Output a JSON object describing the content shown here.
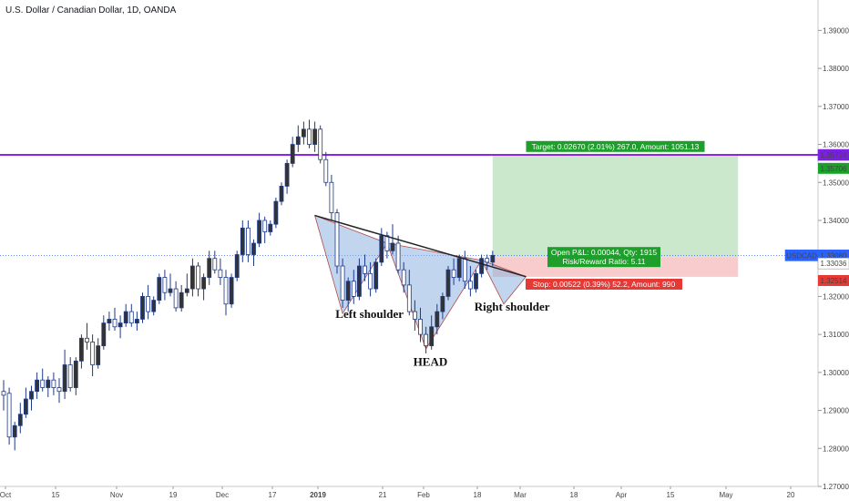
{
  "chart_data": {
    "type": "candlestick",
    "title": "U.S. Dollar / Canadian Dollar, 1D, OANDA",
    "symbol": "USDCAD",
    "ylim": [
      1.27,
      1.398
    ],
    "y_ticks": [
      "1.39000",
      "1.38000",
      "1.37000",
      "1.36000",
      "1.35000",
      "1.34000",
      "1.32000",
      "1.31000",
      "1.30000",
      "1.29000",
      "1.28000",
      "1.27000"
    ],
    "x_ticks": [
      "Oct",
      "15",
      "Nov",
      "19",
      "Dec",
      "17",
      "2019",
      "21",
      "Feb",
      "18",
      "Mar",
      "18",
      "Apr",
      "15",
      "May",
      "20"
    ],
    "price_badges": [
      {
        "label": "1.35724",
        "value": 1.35724,
        "color": "#7b1fe0"
      },
      {
        "label": "1.35706",
        "value": 1.35706,
        "color": "#18a328"
      },
      {
        "label": "USDCAD",
        "value": 1.3308,
        "color": "#2962ff"
      },
      {
        "label": "1.33080",
        "value": 1.3308,
        "color": "#2962ff"
      },
      {
        "label": "1.33036",
        "value": 1.33036,
        "color": "#ffffff"
      },
      {
        "label": "1.32514",
        "value": 1.32514,
        "color": "#e53935"
      }
    ],
    "horizontal_line": {
      "value": 1.35724,
      "color": "#8e24e8"
    },
    "current_price_line": {
      "value": 1.3308,
      "color": "#2962ff"
    },
    "candle_colors": {
      "up": "#333333",
      "down": "#ffffff",
      "wick": "#1e3a8a",
      "border": "#1e3a8a"
    },
    "position": {
      "entry": 1.33036,
      "target": 1.35706,
      "stop": 1.32514,
      "start_index": 88,
      "end_index": 132,
      "target_label": "Target: 0.02670 (2.01%) 267.0, Amount: 1051.13",
      "info_line1": "Open P&L: 0.00044, Qty: 1915",
      "info_line2": "Risk/Reward Ratio: 5.11",
      "stop_label": "Stop: 0.00522 (0.39%) 52.2, Amount: 990",
      "profit_color": "#c8e6c9",
      "loss_color": "#f8c9c9"
    },
    "pattern_labels": [
      {
        "text": "Left shoulder",
        "index": 63,
        "value": 1.3143
      },
      {
        "text": "HEAD",
        "index": 77,
        "value": 1.3018
      },
      {
        "text": "Right shoulder",
        "index": 88,
        "value": 1.3163
      }
    ],
    "neckline": {
      "start_index": 56,
      "start_value": 1.3413,
      "end_index": 94,
      "end_value": 1.3252
    },
    "candles": [
      [
        1.295,
        1.298,
        1.29,
        1.294
      ],
      [
        1.2945,
        1.296,
        1.281,
        1.283
      ],
      [
        1.283,
        1.287,
        1.2795,
        1.286
      ],
      [
        1.286,
        1.292,
        1.284,
        1.289
      ],
      [
        1.289,
        1.296,
        1.288,
        1.293
      ],
      [
        1.293,
        1.2965,
        1.29,
        1.295
      ],
      [
        1.295,
        1.3,
        1.293,
        1.298
      ],
      [
        1.298,
        1.301,
        1.295,
        1.296
      ],
      [
        1.296,
        1.299,
        1.2935,
        1.298
      ],
      [
        1.298,
        1.3,
        1.294,
        1.296
      ],
      [
        1.296,
        1.2985,
        1.292,
        1.295
      ],
      [
        1.295,
        1.306,
        1.293,
        1.302
      ],
      [
        1.302,
        1.304,
        1.295,
        1.296
      ],
      [
        1.296,
        1.304,
        1.294,
        1.303
      ],
      [
        1.303,
        1.31,
        1.301,
        1.309
      ],
      [
        1.309,
        1.313,
        1.306,
        1.308
      ],
      [
        1.308,
        1.31,
        1.299,
        1.302
      ],
      [
        1.302,
        1.309,
        1.301,
        1.307
      ],
      [
        1.307,
        1.315,
        1.306,
        1.313
      ],
      [
        1.313,
        1.316,
        1.311,
        1.314
      ],
      [
        1.314,
        1.317,
        1.311,
        1.312
      ],
      [
        1.312,
        1.315,
        1.309,
        1.313
      ],
      [
        1.313,
        1.318,
        1.312,
        1.316
      ],
      [
        1.316,
        1.318,
        1.312,
        1.313
      ],
      [
        1.313,
        1.316,
        1.311,
        1.314
      ],
      [
        1.314,
        1.321,
        1.313,
        1.32
      ],
      [
        1.32,
        1.323,
        1.314,
        1.316
      ],
      [
        1.316,
        1.32,
        1.315,
        1.319
      ],
      [
        1.319,
        1.326,
        1.318,
        1.325
      ],
      [
        1.325,
        1.327,
        1.319,
        1.321
      ],
      [
        1.321,
        1.326,
        1.32,
        1.322
      ],
      [
        1.322,
        1.324,
        1.316,
        1.317
      ],
      [
        1.317,
        1.323,
        1.316,
        1.321
      ],
      [
        1.321,
        1.326,
        1.32,
        1.322
      ],
      [
        1.322,
        1.33,
        1.32,
        1.328
      ],
      [
        1.328,
        1.329,
        1.32,
        1.322
      ],
      [
        1.322,
        1.326,
        1.319,
        1.325
      ],
      [
        1.325,
        1.332,
        1.323,
        1.33
      ],
      [
        1.33,
        1.332,
        1.326,
        1.327
      ],
      [
        1.327,
        1.33,
        1.323,
        1.325
      ],
      [
        1.325,
        1.327,
        1.315,
        1.318
      ],
      [
        1.318,
        1.326,
        1.317,
        1.325
      ],
      [
        1.325,
        1.332,
        1.324,
        1.331
      ],
      [
        1.331,
        1.34,
        1.329,
        1.338
      ],
      [
        1.338,
        1.34,
        1.329,
        1.331
      ],
      [
        1.331,
        1.335,
        1.328,
        1.334
      ],
      [
        1.334,
        1.342,
        1.333,
        1.34
      ],
      [
        1.34,
        1.341,
        1.334,
        1.337
      ],
      [
        1.337,
        1.34,
        1.336,
        1.339
      ],
      [
        1.339,
        1.346,
        1.338,
        1.345
      ],
      [
        1.345,
        1.35,
        1.344,
        1.349
      ],
      [
        1.349,
        1.356,
        1.347,
        1.355
      ],
      [
        1.355,
        1.362,
        1.354,
        1.36
      ],
      [
        1.36,
        1.365,
        1.358,
        1.362
      ],
      [
        1.362,
        1.366,
        1.36,
        1.364
      ],
      [
        1.364,
        1.3665,
        1.359,
        1.36
      ],
      [
        1.36,
        1.366,
        1.358,
        1.364
      ],
      [
        1.364,
        1.365,
        1.355,
        1.356
      ],
      [
        1.356,
        1.358,
        1.349,
        1.35
      ],
      [
        1.35,
        1.352,
        1.34,
        1.342
      ],
      [
        1.342,
        1.343,
        1.326,
        1.328
      ],
      [
        1.328,
        1.33,
        1.317,
        1.319
      ],
      [
        1.319,
        1.325,
        1.316,
        1.324
      ],
      [
        1.324,
        1.327,
        1.318,
        1.32
      ],
      [
        1.32,
        1.33,
        1.319,
        1.328
      ],
      [
        1.328,
        1.331,
        1.324,
        1.326
      ],
      [
        1.326,
        1.329,
        1.32,
        1.322
      ],
      [
        1.322,
        1.33,
        1.321,
        1.329
      ],
      [
        1.329,
        1.338,
        1.328,
        1.336
      ],
      [
        1.336,
        1.337,
        1.33,
        1.332
      ],
      [
        1.332,
        1.339,
        1.331,
        1.334
      ],
      [
        1.334,
        1.336,
        1.326,
        1.327
      ],
      [
        1.327,
        1.329,
        1.321,
        1.323
      ],
      [
        1.323,
        1.327,
        1.315,
        1.316
      ],
      [
        1.316,
        1.319,
        1.311,
        1.314
      ],
      [
        1.314,
        1.317,
        1.308,
        1.31
      ],
      [
        1.31,
        1.312,
        1.305,
        1.307
      ],
      [
        1.307,
        1.315,
        1.306,
        1.312
      ],
      [
        1.312,
        1.318,
        1.31,
        1.316
      ],
      [
        1.316,
        1.321,
        1.314,
        1.32
      ],
      [
        1.32,
        1.328,
        1.319,
        1.327
      ],
      [
        1.327,
        1.33,
        1.323,
        1.325
      ],
      [
        1.325,
        1.331,
        1.324,
        1.33
      ],
      [
        1.33,
        1.332,
        1.322,
        1.324
      ],
      [
        1.324,
        1.328,
        1.32,
        1.322
      ],
      [
        1.322,
        1.327,
        1.321,
        1.326
      ],
      [
        1.326,
        1.331,
        1.325,
        1.33
      ],
      [
        1.33,
        1.331,
        1.327,
        1.329
      ],
      [
        1.329,
        1.332,
        1.328,
        1.3308
      ]
    ]
  }
}
